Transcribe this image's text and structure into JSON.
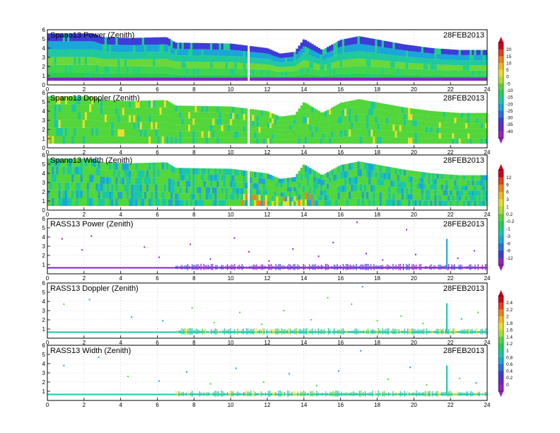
{
  "chart_data": [
    {
      "type": "heatmap",
      "title": "Spano13 Power (Zenith)",
      "date": "28FEB2013",
      "xlim": [
        0,
        24
      ],
      "ylim": [
        0,
        6
      ],
      "x_ticks": [
        "0",
        "2",
        "4",
        "6",
        "8",
        "10",
        "12",
        "14",
        "16",
        "18",
        "20",
        "22",
        "24"
      ],
      "y_ticks": [
        "0",
        "1",
        "2",
        "3",
        "4",
        "5",
        "6"
      ],
      "grid": true,
      "colorbar": "power",
      "layer_bottom": 0.45,
      "top_profile": [
        {
          "x": 0,
          "y": 5.6
        },
        {
          "x": 2.5,
          "y": 5.6
        },
        {
          "x": 3.0,
          "y": 5.2
        },
        {
          "x": 4.5,
          "y": 5.1
        },
        {
          "x": 6.5,
          "y": 5.2
        },
        {
          "x": 7.0,
          "y": 4.6
        },
        {
          "x": 10.0,
          "y": 4.5
        },
        {
          "x": 12.0,
          "y": 4.0
        },
        {
          "x": 12.7,
          "y": 3.4
        },
        {
          "x": 13.5,
          "y": 3.6
        },
        {
          "x": 14.0,
          "y": 5.0
        },
        {
          "x": 15.0,
          "y": 3.8
        },
        {
          "x": 16.0,
          "y": 4.9
        },
        {
          "x": 17.0,
          "y": 5.3
        },
        {
          "x": 19.5,
          "y": 4.4
        },
        {
          "x": 21.0,
          "y": 4.0
        },
        {
          "x": 22.5,
          "y": 3.8
        },
        {
          "x": 24.0,
          "y": 3.8
        }
      ]
    },
    {
      "type": "heatmap",
      "title": "Spano13 Doppler (Zenith)",
      "date": "28FEB2013",
      "xlim": [
        0,
        24
      ],
      "ylim": [
        0,
        6
      ],
      "x_ticks": [
        "0",
        "2",
        "4",
        "6",
        "8",
        "10",
        "12",
        "14",
        "16",
        "18",
        "20",
        "22",
        "24"
      ],
      "y_ticks": [
        "0",
        "1",
        "2",
        "3",
        "4",
        "5",
        "6"
      ],
      "grid": true,
      "colorbar": "power",
      "layer_bottom": 0.45,
      "top_profile": [
        {
          "x": 0,
          "y": 5.6
        },
        {
          "x": 2.5,
          "y": 5.6
        },
        {
          "x": 3.0,
          "y": 5.2
        },
        {
          "x": 4.5,
          "y": 5.1
        },
        {
          "x": 6.5,
          "y": 5.2
        },
        {
          "x": 7.0,
          "y": 4.6
        },
        {
          "x": 10.0,
          "y": 4.5
        },
        {
          "x": 12.0,
          "y": 4.0
        },
        {
          "x": 12.7,
          "y": 3.4
        },
        {
          "x": 13.5,
          "y": 3.6
        },
        {
          "x": 14.0,
          "y": 5.0
        },
        {
          "x": 15.0,
          "y": 3.8
        },
        {
          "x": 16.0,
          "y": 4.9
        },
        {
          "x": 17.0,
          "y": 5.3
        },
        {
          "x": 19.5,
          "y": 4.4
        },
        {
          "x": 21.0,
          "y": 4.0
        },
        {
          "x": 22.5,
          "y": 3.8
        },
        {
          "x": 24.0,
          "y": 3.8
        }
      ]
    },
    {
      "type": "heatmap",
      "title": "Spano13 Width (Zenith)",
      "date": "28FEB2013",
      "xlim": [
        0,
        24
      ],
      "ylim": [
        0,
        6
      ],
      "x_ticks": [
        "0",
        "2",
        "4",
        "6",
        "8",
        "10",
        "12",
        "14",
        "16",
        "18",
        "20",
        "22",
        "24"
      ],
      "y_ticks": [
        "0",
        "1",
        "2",
        "3",
        "4",
        "5",
        "6"
      ],
      "grid": true,
      "colorbar": "width",
      "layer_bottom": 0.45,
      "top_profile": [
        {
          "x": 0,
          "y": 5.6
        },
        {
          "x": 2.5,
          "y": 5.6
        },
        {
          "x": 3.0,
          "y": 5.2
        },
        {
          "x": 4.5,
          "y": 5.1
        },
        {
          "x": 6.5,
          "y": 5.2
        },
        {
          "x": 7.0,
          "y": 4.6
        },
        {
          "x": 10.0,
          "y": 4.5
        },
        {
          "x": 12.0,
          "y": 4.0
        },
        {
          "x": 12.7,
          "y": 3.4
        },
        {
          "x": 13.5,
          "y": 3.6
        },
        {
          "x": 14.0,
          "y": 5.0
        },
        {
          "x": 15.0,
          "y": 3.8
        },
        {
          "x": 16.0,
          "y": 4.9
        },
        {
          "x": 17.0,
          "y": 5.3
        },
        {
          "x": 19.5,
          "y": 4.4
        },
        {
          "x": 21.0,
          "y": 4.0
        },
        {
          "x": 22.5,
          "y": 3.8
        },
        {
          "x": 24.0,
          "y": 3.8
        }
      ]
    },
    {
      "type": "scatter",
      "title": "RASS13 Power (Zenith)",
      "date": "28FEB2013",
      "xlim": [
        0,
        24
      ],
      "ylim": [
        0,
        6
      ],
      "x_ticks": [
        "0",
        "2",
        "4",
        "6",
        "8",
        "10",
        "12",
        "14",
        "16",
        "18",
        "20",
        "22",
        "24"
      ],
      "y_ticks": [
        "1",
        "2",
        "3",
        "4",
        "5",
        "6"
      ],
      "grid": true,
      "colorbar": "width",
      "base_height": 0.65,
      "spike_x": 21.8,
      "spike_top": 3.8,
      "points": [
        {
          "x": 0.8,
          "y": 3.8
        },
        {
          "x": 1.9,
          "y": 2.6
        },
        {
          "x": 2.4,
          "y": 4.1
        },
        {
          "x": 5.3,
          "y": 2.9
        },
        {
          "x": 6.1,
          "y": 1.8
        },
        {
          "x": 7.8,
          "y": 3.2
        },
        {
          "x": 8.9,
          "y": 1.6
        },
        {
          "x": 10.2,
          "y": 3.9
        },
        {
          "x": 11.0,
          "y": 2.4
        },
        {
          "x": 12.1,
          "y": 1.4
        },
        {
          "x": 13.4,
          "y": 2.7
        },
        {
          "x": 14.8,
          "y": 1.9
        },
        {
          "x": 15.6,
          "y": 3.4
        },
        {
          "x": 16.9,
          "y": 5.6
        },
        {
          "x": 17.4,
          "y": 2.2
        },
        {
          "x": 18.3,
          "y": 1.5
        },
        {
          "x": 19.6,
          "y": 4.8
        },
        {
          "x": 20.1,
          "y": 2.1
        },
        {
          "x": 22.4,
          "y": 1.7
        },
        {
          "x": 23.3,
          "y": 2.5
        }
      ]
    },
    {
      "type": "scatter",
      "title": "RASS13 Doppler (Zenith)",
      "date": "28FEB2013",
      "xlim": [
        0,
        24
      ],
      "ylim": [
        0,
        6
      ],
      "x_ticks": [
        "0",
        "2",
        "4",
        "6",
        "8",
        "10",
        "12",
        "14",
        "16",
        "18",
        "20",
        "22",
        "24"
      ],
      "y_ticks": [
        "1",
        "2",
        "3",
        "4",
        "5",
        "6"
      ],
      "grid": true,
      "colorbar": "rass",
      "base_height": 0.65,
      "spike_x": 21.8,
      "spike_top": 3.8,
      "points": [
        {
          "x": 0.9,
          "y": 3.7
        },
        {
          "x": 2.3,
          "y": 4.2
        },
        {
          "x": 4.6,
          "y": 2.3
        },
        {
          "x": 6.3,
          "y": 1.9
        },
        {
          "x": 7.9,
          "y": 3.3
        },
        {
          "x": 9.1,
          "y": 1.7
        },
        {
          "x": 10.5,
          "y": 2.8
        },
        {
          "x": 11.7,
          "y": 1.5
        },
        {
          "x": 12.9,
          "y": 3.0
        },
        {
          "x": 14.4,
          "y": 2.0
        },
        {
          "x": 15.3,
          "y": 4.4
        },
        {
          "x": 16.6,
          "y": 3.7
        },
        {
          "x": 17.2,
          "y": 5.6
        },
        {
          "x": 18.0,
          "y": 1.9
        },
        {
          "x": 19.3,
          "y": 2.4
        },
        {
          "x": 20.5,
          "y": 1.6
        },
        {
          "x": 22.6,
          "y": 2.1
        },
        {
          "x": 23.5,
          "y": 2.8
        }
      ]
    },
    {
      "type": "scatter",
      "title": "RASS13 Width (Zenith)",
      "date": "28FEB2013",
      "xlim": [
        0,
        24
      ],
      "ylim": [
        0,
        6
      ],
      "x_ticks": [
        "0",
        "2",
        "4",
        "6",
        "8",
        "10",
        "12",
        "14",
        "16",
        "18",
        "20",
        "22",
        "24"
      ],
      "y_ticks": [
        "1",
        "2",
        "3",
        "4",
        "5",
        "6"
      ],
      "grid": true,
      "colorbar": "rass",
      "base_height": 0.65,
      "spike_x": 21.8,
      "spike_top": 3.8,
      "points": [
        {
          "x": 0.9,
          "y": 3.8
        },
        {
          "x": 2.8,
          "y": 4.7
        },
        {
          "x": 4.4,
          "y": 2.6
        },
        {
          "x": 6.1,
          "y": 2.1
        },
        {
          "x": 7.6,
          "y": 3.1
        },
        {
          "x": 8.9,
          "y": 1.8
        },
        {
          "x": 10.3,
          "y": 3.5
        },
        {
          "x": 11.8,
          "y": 2.0
        },
        {
          "x": 13.2,
          "y": 2.9
        },
        {
          "x": 14.7,
          "y": 1.6
        },
        {
          "x": 15.9,
          "y": 3.2
        },
        {
          "x": 17.1,
          "y": 5.4
        },
        {
          "x": 18.6,
          "y": 2.3
        },
        {
          "x": 19.8,
          "y": 3.6
        },
        {
          "x": 20.7,
          "y": 1.7
        },
        {
          "x": 22.5,
          "y": 2.4
        },
        {
          "x": 23.4,
          "y": 1.9
        }
      ]
    }
  ],
  "colorbars": {
    "power": {
      "labels": [
        "20",
        "15",
        "10",
        "5",
        "0",
        "-5",
        "-10",
        "-15",
        "-20",
        "-25",
        "-30",
        "-35",
        "-40"
      ],
      "colors": [
        "#d0001a",
        "#e8401a",
        "#f2801a",
        "#f5b422",
        "#e8df2b",
        "#a8e030",
        "#52d63a",
        "#1fcf5a",
        "#1ac7a7",
        "#1aa6d8",
        "#2a70e0",
        "#3d3cd8",
        "#6a26c8",
        "#9a22c0"
      ]
    },
    "width": {
      "labels": [
        "12",
        "9",
        "6",
        "3",
        "1",
        "0.2",
        "-0.2",
        "-1",
        "-3",
        "-6",
        "-9",
        "-12"
      ],
      "colors": [
        "#d0001a",
        "#e8401a",
        "#f2801a",
        "#f5b422",
        "#e8df2b",
        "#a8e030",
        "#52d63a",
        "#1fcf5a",
        "#1ac7a7",
        "#1aa6d8",
        "#2a70e0",
        "#3d3cd8",
        "#9a22c0"
      ]
    },
    "rass": {
      "labels": [
        "2.4",
        "2.2",
        "2",
        "1.8",
        "1.6",
        "1.4",
        "1.2",
        "1",
        "0.8",
        "0.6",
        "0.4",
        "0.2",
        "0"
      ],
      "colors": [
        "#d0001a",
        "#e8401a",
        "#f2801a",
        "#f5b422",
        "#e8df2b",
        "#a8e030",
        "#52d63a",
        "#1fcf5a",
        "#1ac7a7",
        "#1aa6d8",
        "#2a70e0",
        "#3d3cd8",
        "#6a26c8",
        "#9a22c0"
      ]
    }
  }
}
